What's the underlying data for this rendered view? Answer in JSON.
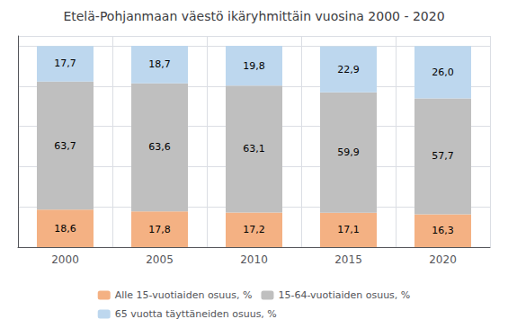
{
  "chart_data": {
    "type": "bar",
    "title": "Etelä-Pohjanmaan väestö ikäryhmittäin vuosina 2000 - 2020",
    "categories": [
      "2000",
      "2005",
      "2010",
      "2015",
      "2020"
    ],
    "series": [
      {
        "name": "Alle 15-vuotiaiden osuus, %",
        "color": "#f4b183",
        "values": [
          18.6,
          17.8,
          17.2,
          17.1,
          16.3
        ],
        "value_labels": [
          "18,6",
          "17,8",
          "17,2",
          "17,1",
          "16,3"
        ]
      },
      {
        "name": "15-64-vuotiaiden osuus, %",
        "color": "#bfbfbf",
        "values": [
          63.7,
          63.6,
          63.1,
          59.9,
          57.7
        ],
        "value_labels": [
          "63,7",
          "63,6",
          "63,1",
          "59,9",
          "57,7"
        ]
      },
      {
        "name": "65 vuotta täyttäneiden osuus, %",
        "color": "#bdd7ee",
        "values": [
          17.7,
          18.7,
          19.8,
          22.9,
          26.0
        ],
        "value_labels": [
          "17,7",
          "18,7",
          "19,8",
          "22,9",
          "26,0"
        ]
      }
    ],
    "ylim": [
      0,
      105
    ],
    "yticks": [
      0,
      20,
      40,
      60,
      80,
      100
    ],
    "stacked": true,
    "data_labels": true,
    "grid": true,
    "legend": "bottom",
    "tick_labels": "x"
  }
}
